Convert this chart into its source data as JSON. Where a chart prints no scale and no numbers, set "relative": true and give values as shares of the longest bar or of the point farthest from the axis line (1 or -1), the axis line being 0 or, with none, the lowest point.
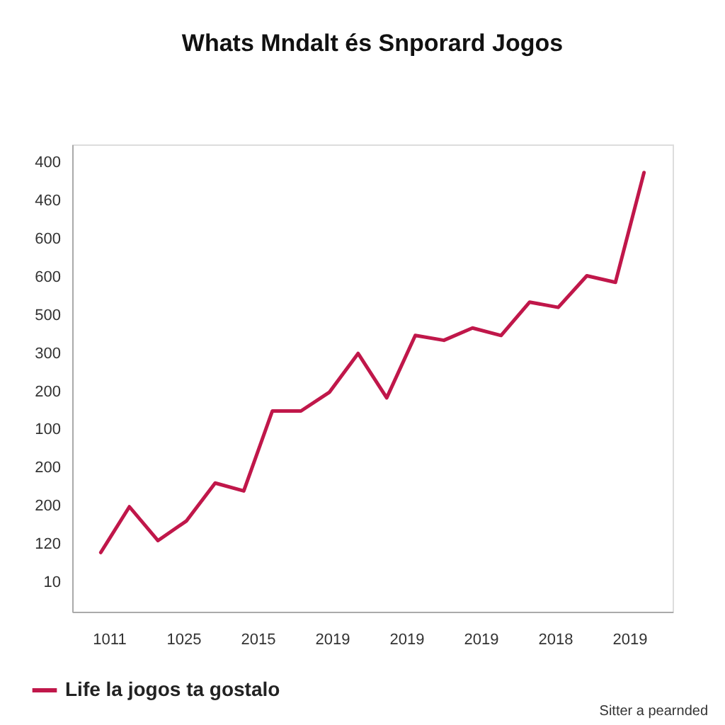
{
  "chart_data": {
    "type": "line",
    "title": "Whats Mndalt és Snporard Jogos",
    "relative": true,
    "categories": [
      null,
      null,
      null,
      null,
      null,
      null,
      null,
      null,
      null,
      null,
      null,
      null,
      null,
      null,
      null,
      null,
      null,
      null,
      null,
      null
    ],
    "series": [
      {
        "name": "Life la jogos ta gostalo",
        "color": "#c0174a",
        "values": [
          0.135,
          0.239,
          0.162,
          0.207,
          0.293,
          0.275,
          0.457,
          0.457,
          0.5,
          0.588,
          0.487,
          0.629,
          0.618,
          0.646,
          0.629,
          0.705,
          0.693,
          0.765,
          0.75,
          1
        ]
      }
    ],
    "grid": false,
    "legend": "bottom left",
    "annotations": [
      "400",
      "460",
      "600",
      "600",
      "500",
      "300",
      "200",
      "100",
      "200",
      "200",
      "120",
      "10",
      "1011",
      "1025",
      "2015",
      "2019",
      "2019",
      "2019",
      "2018",
      "2019",
      "Sitter a pearnded"
    ]
  }
}
